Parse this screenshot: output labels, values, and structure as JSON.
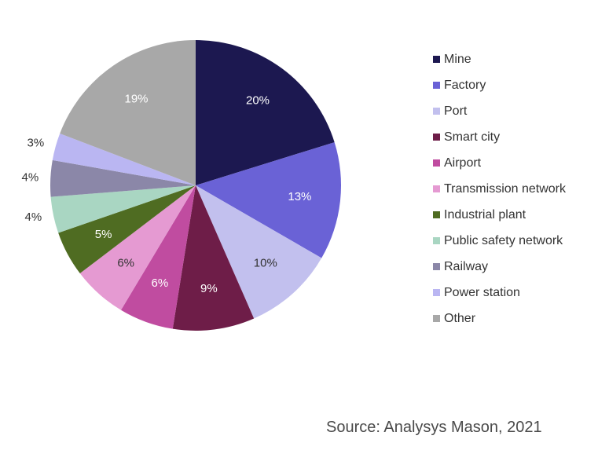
{
  "chart_data": {
    "type": "pie",
    "title": "",
    "start": "12 o'clock, clockwise",
    "series": [
      {
        "name": "Mine",
        "value": 20,
        "label": "20%",
        "color": "#1c1850",
        "label_color": "#ffffff"
      },
      {
        "name": "Factory",
        "value": 13,
        "label": "13%",
        "color": "#6a62d6",
        "label_color": "#ffffff"
      },
      {
        "name": "Port",
        "value": 10,
        "label": "10%",
        "color": "#c2c0ee",
        "label_color": "#333333"
      },
      {
        "name": "Smart city",
        "value": 9,
        "label": "9%",
        "color": "#6e1d48",
        "label_color": "#ffffff"
      },
      {
        "name": "Airport",
        "value": 6,
        "label": "6%",
        "color": "#c04ca0",
        "label_color": "#ffffff"
      },
      {
        "name": "Transmission network",
        "value": 6,
        "label": "6%",
        "color": "#e59ad2",
        "label_color": "#333333"
      },
      {
        "name": "Industrial plant",
        "value": 5,
        "label": "5%",
        "color": "#4f6c22",
        "label_color": "#ffffff"
      },
      {
        "name": "Public safety network",
        "value": 4,
        "label": "4%",
        "color": "#a9d6c2",
        "label_color": "#333333"
      },
      {
        "name": "Railway",
        "value": 4,
        "label": "4%",
        "color": "#8b87a8",
        "label_color": "#333333"
      },
      {
        "name": "Power station",
        "value": 3,
        "label": "3%",
        "color": "#bab6f2",
        "label_color": "#333333"
      },
      {
        "name": "Other",
        "value": 19,
        "label": "19%",
        "color": "#a8a8a8",
        "label_color": "#ffffff"
      }
    ],
    "legend_position": "right"
  },
  "source": "Source: Analysys Mason, 2021"
}
